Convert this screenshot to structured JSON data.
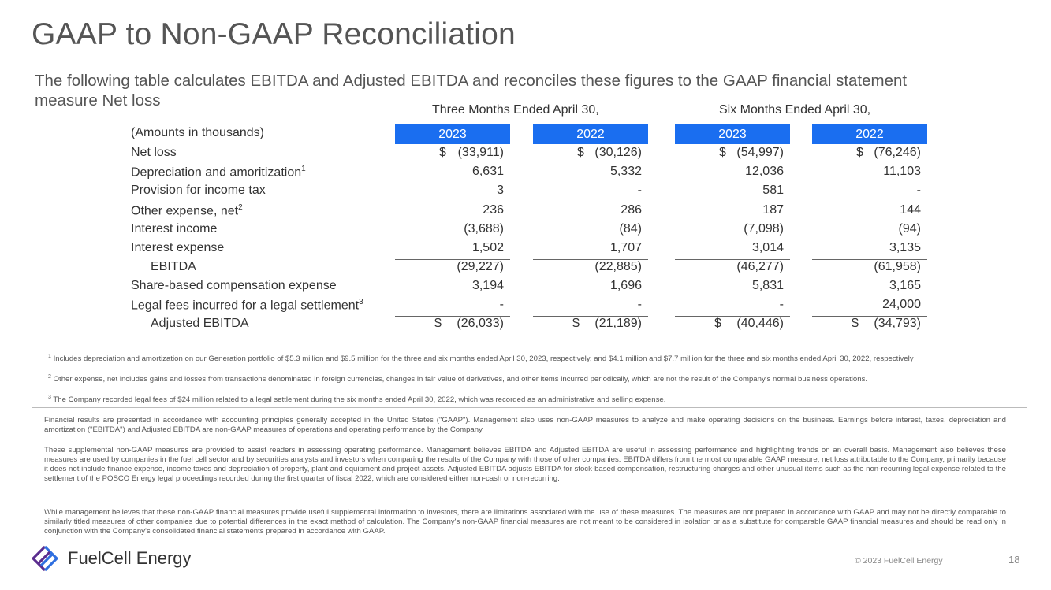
{
  "header": {
    "title": "GAAP to Non-GAAP Reconciliation",
    "subtitle": "The following table calculates EBITDA and Adjusted EBITDA and reconciles these figures to the GAAP financial statement measure Net loss"
  },
  "table": {
    "period_three": "Three Months Ended April 30,",
    "period_six": "Six Months Ended April 30,",
    "years": [
      "2023",
      "2022",
      "2023",
      "2022"
    ],
    "amounts_label": "(Amounts in thousands)",
    "currency_symbol": "$",
    "rows": [
      {
        "label": "Net loss",
        "sup": "",
        "values": [
          "(33,911)",
          "(30,126)",
          "(54,997)",
          "(76,246)"
        ]
      },
      {
        "label": "Depreciation and amoritization",
        "sup": "1",
        "values": [
          "6,631",
          "5,332",
          "12,036",
          "11,103"
        ]
      },
      {
        "label": "Provision for income tax",
        "sup": "",
        "values": [
          "3",
          "-",
          "581",
          "-"
        ]
      },
      {
        "label": "Other expense, net",
        "sup": "2",
        "values": [
          "236",
          "286",
          "187",
          "144"
        ]
      },
      {
        "label": "Interest income",
        "sup": "",
        "values": [
          "(3,688)",
          "(84)",
          "(7,098)",
          "(94)"
        ]
      },
      {
        "label": "Interest expense",
        "sup": "",
        "values": [
          "1,502",
          "1,707",
          "3,014",
          "3,135"
        ]
      },
      {
        "label": "EBITDA",
        "sup": "",
        "values": [
          "(29,227)",
          "(22,885)",
          "(46,277)",
          "(61,958)"
        ]
      },
      {
        "label": "Share-based compensation expense",
        "sup": "",
        "values": [
          "3,194",
          "1,696",
          "5,831",
          "3,165"
        ]
      },
      {
        "label": "Legal fees incurred for a legal settlement",
        "sup": "3",
        "values": [
          "-",
          "-",
          "-",
          "24,000"
        ]
      },
      {
        "label": "Adjusted EBITDA",
        "sup": "",
        "values": [
          "(26,033)",
          "(21,189)",
          "(40,446)",
          "(34,793)"
        ]
      }
    ]
  },
  "footnotes": {
    "note1_num": "1",
    "note1": "Includes depreciation and amortization on our Generation portfolio of $5.3 million and $9.5 million for the three and six months ended April 30, 2023, respectively, and $4.1 million and $7.7 million for the three and six months ended April 30, 2022, respectively",
    "note2_num": "2",
    "note2": "Other expense, net includes gains and losses from transactions denominated in foreign currencies, changes in fair value of derivatives, and other items incurred periodically, which are not the result of the Company's normal business operations.",
    "note3_num": "3",
    "note3": "The Company recorded legal fees of $24 million related to a legal settlement during the six months ended April 30, 2022, which was recorded as an administrative and selling expense."
  },
  "disclaimer": {
    "para1": "Financial results are presented in accordance with accounting principles generally accepted in the United States (\"GAAP\"). Management also uses non-GAAP measures to analyze and make operating decisions on the business. Earnings before interest, taxes, depreciation and amortization (\"EBITDA\") and Adjusted EBITDA are non-GAAP measures of operations and operating performance by the Company.",
    "para2": "These supplemental non-GAAP measures are provided to assist readers in assessing operating performance. Management believes EBITDA and Adjusted EBITDA are useful in assessing performance and highlighting trends on an overall basis. Management also believes these measures are used by companies in the fuel cell sector and by securities analysts and investors when comparing the results of the Company with those of other companies. EBITDA differs from the most comparable GAAP measure, net loss attributable to the Company, primarily because it does not include finance expense, income taxes and depreciation of property, plant and equipment and project assets. Adjusted EBITDA adjusts EBITDA for stock-based compensation, restructuring charges and other unusual items such as the non-recurring legal expense related to the settlement of the POSCO Energy legal proceedings recorded during the first quarter of fiscal 2022, which are considered either non-cash or non-recurring.",
    "para3": "While management believes that these non-GAAP financial measures provide useful supplemental information to investors, there are limitations associated with the use of these measures. The measures are not prepared in accordance with GAAP and may not be directly comparable to similarly titled measures of other companies due to potential differences in the exact method of calculation. The Company's non-GAAP financial measures are not meant to be considered in isolation or as a substitute for comparable GAAP financial measures and should be read only in conjunction with the Company's consolidated financial statements prepared in accordance with GAAP."
  },
  "footer": {
    "logo_text": "FuelCell Energy",
    "copyright": "© 2023 FuelCell Energy",
    "page_number": "18"
  },
  "colors": {
    "accent": "#1a6ef0",
    "logo_purple": "#5b2d8e",
    "logo_blue": "#2f6fe0"
  }
}
